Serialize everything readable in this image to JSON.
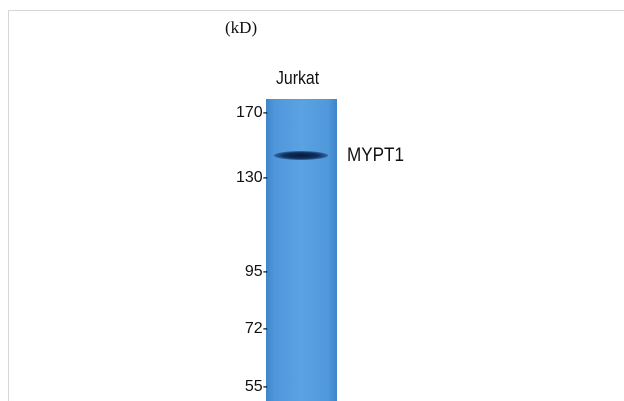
{
  "blot": {
    "unit_label": "(kD)",
    "lane_label": "Jurkat",
    "band_label": "MYPT1",
    "markers": [
      {
        "label": "170-",
        "kd": 170
      },
      {
        "label": "130-",
        "kd": 130
      },
      {
        "label": "95-",
        "kd": 95
      },
      {
        "label": "72-",
        "kd": 72
      },
      {
        "label": "55-",
        "kd": 55
      }
    ],
    "colors": {
      "lane": "#5aa2e2",
      "band": "#0f2f5c"
    }
  }
}
